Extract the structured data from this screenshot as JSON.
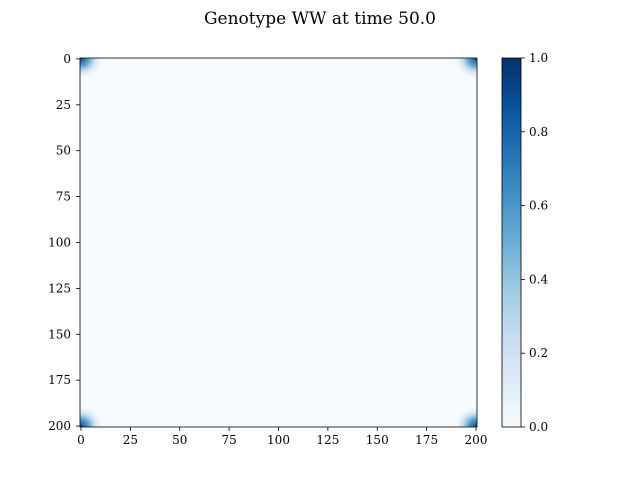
{
  "chart_data": [
    {
      "type": "heatmap",
      "title": "Genotype WW at time 50.0",
      "xlabel": "",
      "ylabel": "",
      "xlim": [
        0,
        201
      ],
      "ylim": [
        201,
        0
      ],
      "xticks": [
        "0",
        "25",
        "50",
        "75",
        "100",
        "125",
        "150",
        "175",
        "200"
      ],
      "yticks": [
        "0",
        "25",
        "50",
        "75",
        "100",
        "125",
        "150",
        "175",
        "200"
      ],
      "grid": false,
      "colormap": "Blues",
      "description_values": {
        "background": 0.0,
        "corner_peaks": [
          {
            "x": 0,
            "y": 0,
            "value": 0.85
          },
          {
            "x": 200,
            "y": 0,
            "value": 0.85
          },
          {
            "x": 0,
            "y": 200,
            "value": 0.85
          },
          {
            "x": 200,
            "y": 200,
            "value": 0.85
          }
        ]
      }
    },
    {
      "type": "colorbar",
      "range": [
        0.0,
        1.0
      ],
      "ticks": [
        "0.0",
        "0.2",
        "0.4",
        "0.6",
        "0.8",
        "1.0"
      ],
      "colors": {
        "low": "#f7fbff",
        "mid": "#6baed6",
        "high": "#08306b"
      }
    }
  ]
}
